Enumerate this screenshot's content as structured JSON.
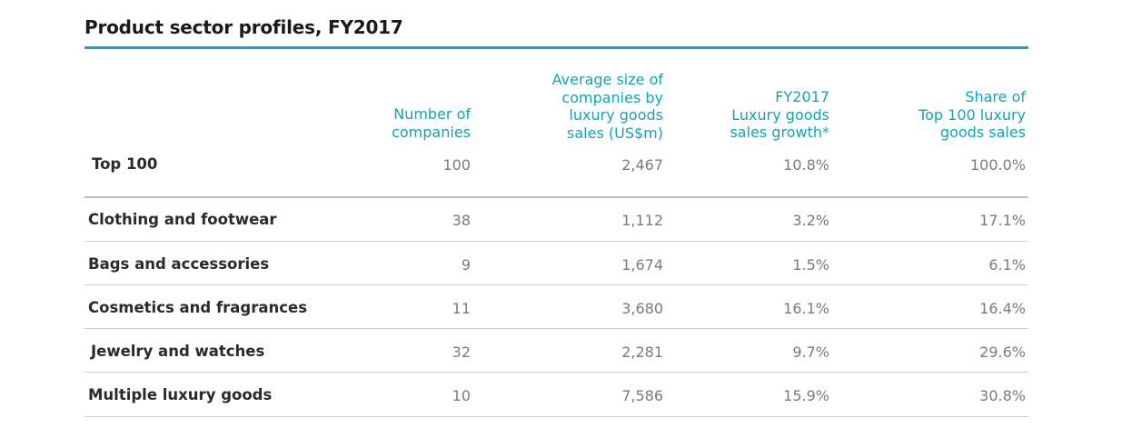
{
  "chart_data": {
    "type": "table",
    "title": "Product sector profiles, FY2017",
    "columns": [
      "",
      "Number of\ncompanies",
      "Average size of\ncompanies by\nluxury goods\nsales (US$m)",
      "FY2017\nLuxury goods\nsales growth*",
      "Share of\nTop 100 luxury\ngoods sales"
    ],
    "rows": [
      {
        "label": "Top 100",
        "values": [
          "100",
          "2,467",
          "10.8%",
          "100.0%"
        ]
      },
      {
        "label": "Clothing and footwear",
        "values": [
          "38",
          "1,112",
          "3.2%",
          "17.1%"
        ]
      },
      {
        "label": "Bags and accessories",
        "values": [
          "9",
          "1,674",
          "1.5%",
          "6.1%"
        ]
      },
      {
        "label": "Cosmetics and fragrances",
        "values": [
          "11",
          "3,680",
          "16.1%",
          "16.4%"
        ]
      },
      {
        "label": "Jewelry and watches",
        "values": [
          "32",
          "2,281",
          "9.7%",
          "29.6%"
        ]
      },
      {
        "label": "Multiple luxury goods",
        "values": [
          "10",
          "7,586",
          "15.9%",
          "30.8%"
        ]
      }
    ],
    "colors": {
      "accent_rule": "#1ba3c6",
      "header_text": "#13a3b5",
      "row_label": "#2a2a2a",
      "cell_text": "#7a7a7a"
    }
  }
}
